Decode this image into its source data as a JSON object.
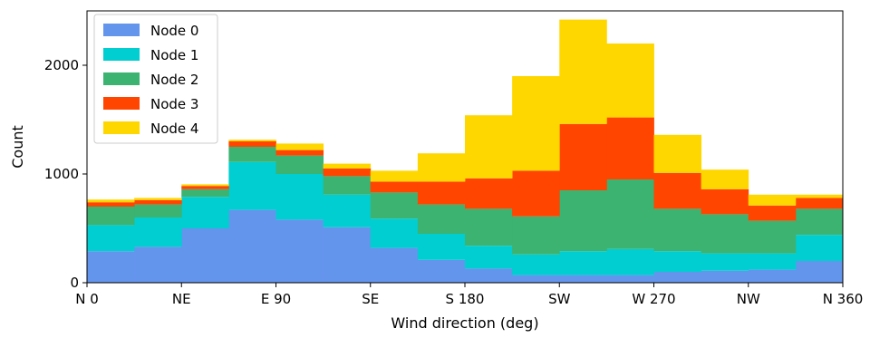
{
  "chart_data": {
    "type": "bar",
    "stacked": true,
    "xlabel": "Wind direction (deg)",
    "ylabel": "Count",
    "xlim": [
      0,
      360
    ],
    "ylim": [
      0,
      2500
    ],
    "bin_edges": [
      0,
      22.5,
      45,
      67.5,
      90,
      112.5,
      135,
      157.5,
      180,
      202.5,
      225,
      247.5,
      270,
      292.5,
      315,
      337.5,
      360
    ],
    "xticks": [
      {
        "value": 0,
        "label": "N 0"
      },
      {
        "value": 45,
        "label": "NE"
      },
      {
        "value": 90,
        "label": "E 90"
      },
      {
        "value": 135,
        "label": "SE"
      },
      {
        "value": 180,
        "label": "S 180"
      },
      {
        "value": 225,
        "label": "SW"
      },
      {
        "value": 270,
        "label": "W 270"
      },
      {
        "value": 315,
        "label": "NW"
      },
      {
        "value": 360,
        "label": "N 360"
      }
    ],
    "yticks": [
      {
        "value": 0,
        "label": "0"
      },
      {
        "value": 1000,
        "label": "1000"
      },
      {
        "value": 2000,
        "label": "2000"
      }
    ],
    "legend_position": "top-left",
    "grid": false,
    "series": [
      {
        "name": "Node 0",
        "color": "#6495ED",
        "values": [
          290,
          330,
          500,
          670,
          580,
          510,
          320,
          210,
          130,
          70,
          70,
          70,
          100,
          110,
          120,
          200
        ]
      },
      {
        "name": "Node 1",
        "color": "#00CED1",
        "values": [
          240,
          270,
          290,
          440,
          420,
          300,
          270,
          240,
          210,
          190,
          220,
          240,
          190,
          160,
          150,
          240
        ]
      },
      {
        "name": "Node 2",
        "color": "#3CB371",
        "values": [
          170,
          120,
          70,
          140,
          170,
          170,
          240,
          270,
          340,
          350,
          560,
          640,
          390,
          360,
          300,
          240
        ]
      },
      {
        "name": "Node 3",
        "color": "#FF4500",
        "values": [
          40,
          40,
          30,
          50,
          50,
          70,
          100,
          210,
          280,
          420,
          610,
          570,
          330,
          230,
          140,
          100
        ]
      },
      {
        "name": "Node 4",
        "color": "#FFD700",
        "values": [
          25,
          20,
          15,
          15,
          60,
          45,
          100,
          260,
          580,
          870,
          960,
          680,
          350,
          180,
          100,
          30
        ]
      }
    ]
  }
}
